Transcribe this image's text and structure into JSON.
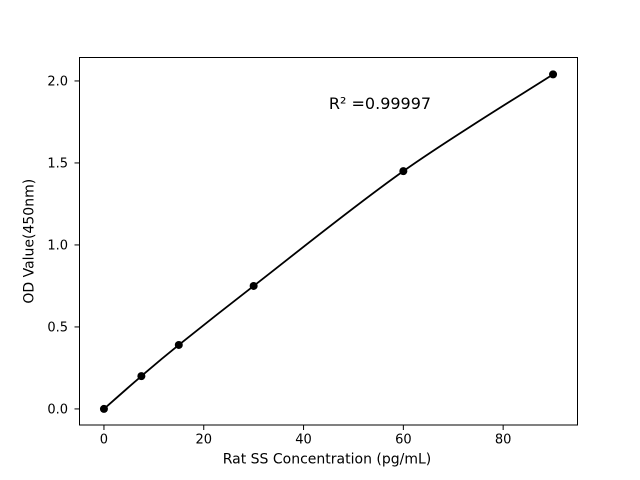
{
  "figure": {
    "background": "#ffffff"
  },
  "chart_data": {
    "type": "line",
    "title": "",
    "xlabel": "Rat SS Concentration (pg/mL)",
    "ylabel": "OD Value(450nm)",
    "annotation": "R² =0.99997",
    "x": [
      0,
      7.5,
      15,
      30,
      60,
      90
    ],
    "y": [
      0.0,
      0.2,
      0.39,
      0.75,
      1.45,
      2.04
    ],
    "x_tick_values": [
      0,
      20,
      40,
      60,
      80
    ],
    "x_tick_labels": [
      "0",
      "20",
      "40",
      "60",
      "80"
    ],
    "y_tick_values": [
      0.0,
      0.5,
      1.0,
      1.5,
      2.0
    ],
    "y_tick_labels": [
      "0.0",
      "0.5",
      "1.0",
      "1.5",
      "2.0"
    ],
    "xlim": [
      -4.9,
      94.9
    ],
    "ylim": [
      -0.098,
      2.143
    ],
    "grid": false,
    "legend": "none",
    "line_color": "#000000",
    "marker_color": "#000000",
    "axis_color": "#000000",
    "text_color": "#000000"
  }
}
